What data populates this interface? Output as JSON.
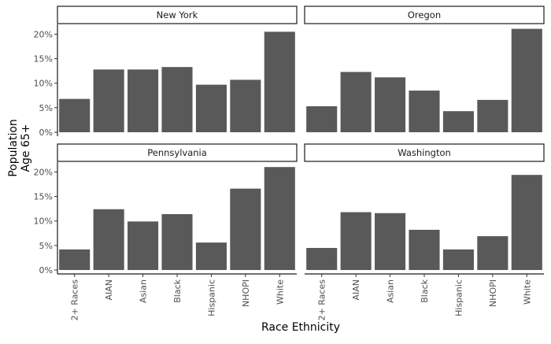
{
  "chart_data": {
    "type": "bar",
    "layout": "facet-grid 2x2",
    "ylabel": "Population\nAge 65+",
    "xlabel": "Race Ethnicity",
    "categories": [
      "2+ Races",
      "AIAN",
      "Asian",
      "Black",
      "Hispanic",
      "NHOPI",
      "White"
    ],
    "ylim": [
      0,
      0.22
    ],
    "yticks": [
      0,
      0.05,
      0.1,
      0.15,
      0.2
    ],
    "ytick_labels": [
      "0%",
      "5%",
      "10%",
      "15%",
      "20%"
    ],
    "bar_color": "#595959",
    "grid": false,
    "facets": [
      {
        "label": "New York",
        "values": [
          0.068,
          0.128,
          0.128,
          0.133,
          0.097,
          0.107,
          0.205
        ]
      },
      {
        "label": "Oregon",
        "values": [
          0.053,
          0.123,
          0.112,
          0.085,
          0.043,
          0.066,
          0.211
        ]
      },
      {
        "label": "Pennsylvania",
        "values": [
          0.042,
          0.124,
          0.099,
          0.114,
          0.056,
          0.166,
          0.21
        ]
      },
      {
        "label": "Washington",
        "values": [
          0.045,
          0.118,
          0.116,
          0.082,
          0.042,
          0.069,
          0.194
        ]
      }
    ]
  }
}
